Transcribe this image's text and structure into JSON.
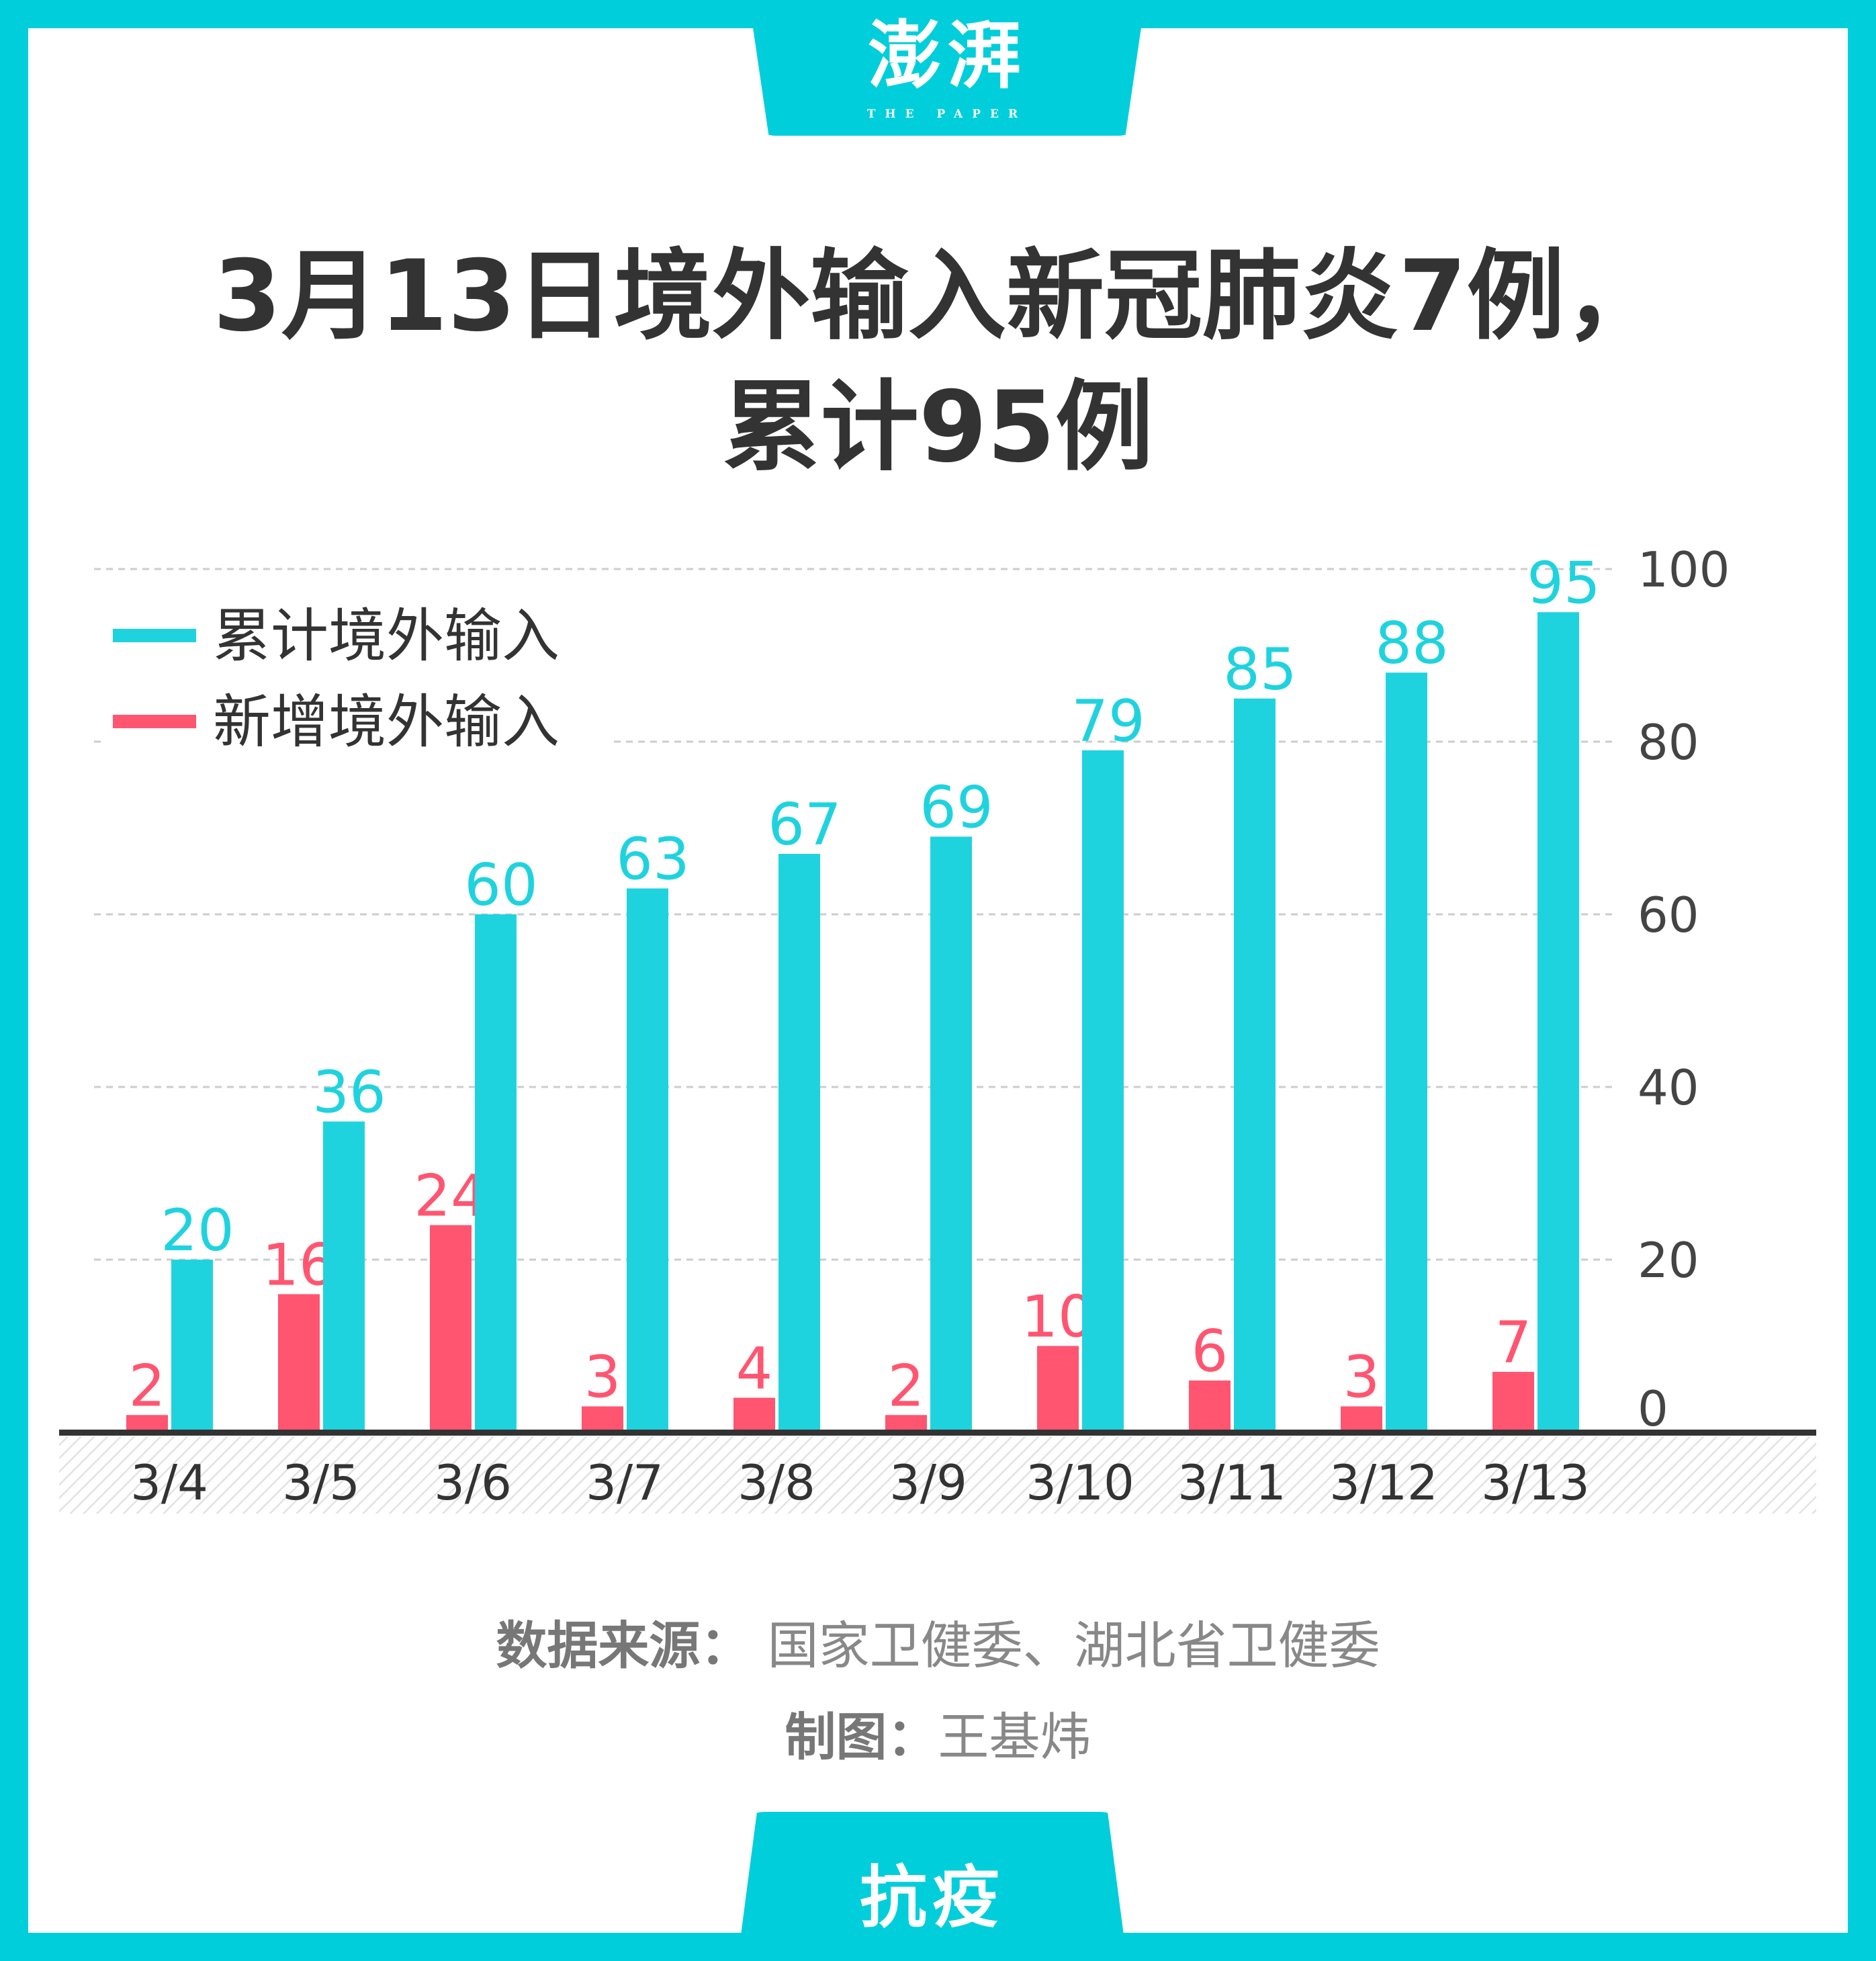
{
  "brand": {
    "logo_text": "澎湃",
    "logo_sub": "THE PAPER",
    "color": "#00CEDB"
  },
  "title": {
    "line1": "3月13日境外输入新冠肺炎7例，",
    "line2": "累计95例"
  },
  "chart_data": {
    "type": "bar",
    "categories": [
      "3/4",
      "3/5",
      "3/6",
      "3/7",
      "3/8",
      "3/9",
      "3/10",
      "3/11",
      "3/12",
      "3/13"
    ],
    "series": [
      {
        "name": "新增境外输入",
        "color": "#FF5570",
        "values": [
          2,
          16,
          24,
          3,
          4,
          2,
          10,
          6,
          3,
          7
        ]
      },
      {
        "name": "累计境外输入",
        "color": "#1FD3DE",
        "values": [
          20,
          36,
          60,
          63,
          67,
          69,
          79,
          85,
          88,
          95
        ]
      }
    ],
    "legend_order": [
      "累计境外输入",
      "新增境外输入"
    ],
    "yticks": [
      0,
      20,
      40,
      60,
      80,
      100
    ],
    "ylim": [
      0,
      100
    ],
    "y_axis_side": "right",
    "grid": true,
    "legend": "top-left"
  },
  "footer": {
    "source_label": "数据来源：",
    "source": "国家卫健委、湖北省卫健委",
    "credit_label": "制图：",
    "credit": "王基炜",
    "tag": "抗疫"
  }
}
